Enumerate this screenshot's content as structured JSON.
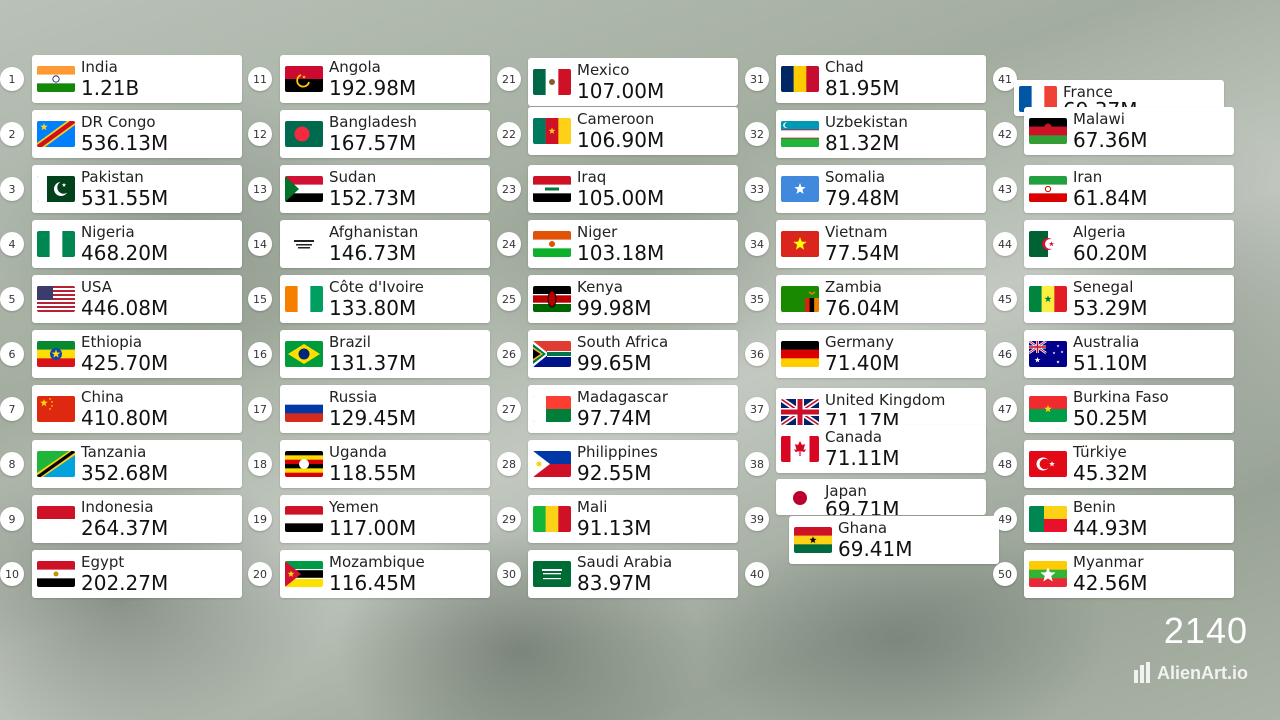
{
  "year": "2140",
  "brand": "AlienArt.io",
  "slots": [
    1,
    2,
    3,
    4,
    5,
    6,
    7,
    8,
    9,
    10,
    11,
    12,
    13,
    14,
    15,
    16,
    17,
    18,
    19,
    20,
    21,
    22,
    23,
    24,
    25,
    26,
    27,
    28,
    29,
    30,
    31,
    32,
    33,
    34,
    35,
    36,
    37,
    38,
    39,
    40,
    41,
    42,
    43,
    44,
    45,
    46,
    47,
    48,
    49,
    50
  ],
  "entries": [
    {
      "rank": 1,
      "name": "India",
      "value": "1.21B",
      "flag": "india"
    },
    {
      "rank": 2,
      "name": "DR Congo",
      "value": "536.13M",
      "flag": "drcongo"
    },
    {
      "rank": 3,
      "name": "Pakistan",
      "value": "531.55M",
      "flag": "pakistan"
    },
    {
      "rank": 4,
      "name": "Nigeria",
      "value": "468.20M",
      "flag": "nigeria"
    },
    {
      "rank": 5,
      "name": "USA",
      "value": "446.08M",
      "flag": "usa"
    },
    {
      "rank": 6,
      "name": "Ethiopia",
      "value": "425.70M",
      "flag": "ethiopia"
    },
    {
      "rank": 7,
      "name": "China",
      "value": "410.80M",
      "flag": "china"
    },
    {
      "rank": 8,
      "name": "Tanzania",
      "value": "352.68M",
      "flag": "tanzania"
    },
    {
      "rank": 9,
      "name": "Indonesia",
      "value": "264.37M",
      "flag": "indonesia"
    },
    {
      "rank": 10,
      "name": "Egypt",
      "value": "202.27M",
      "flag": "egypt"
    },
    {
      "rank": 11,
      "name": "Angola",
      "value": "192.98M",
      "flag": "angola"
    },
    {
      "rank": 12,
      "name": "Bangladesh",
      "value": "167.57M",
      "flag": "bangladesh"
    },
    {
      "rank": 13,
      "name": "Sudan",
      "value": "152.73M",
      "flag": "sudan"
    },
    {
      "rank": 14,
      "name": "Afghanistan",
      "value": "146.73M",
      "flag": "afghanistan"
    },
    {
      "rank": 15,
      "name": "Côte d'Ivoire",
      "value": "133.80M",
      "flag": "ivorycoast"
    },
    {
      "rank": 16,
      "name": "Brazil",
      "value": "131.37M",
      "flag": "brazil"
    },
    {
      "rank": 17,
      "name": "Russia",
      "value": "129.45M",
      "flag": "russia"
    },
    {
      "rank": 18,
      "name": "Uganda",
      "value": "118.55M",
      "flag": "uganda"
    },
    {
      "rank": 19,
      "name": "Yemen",
      "value": "117.00M",
      "flag": "yemen"
    },
    {
      "rank": 20,
      "name": "Mozambique",
      "value": "116.45M",
      "flag": "mozambique"
    },
    {
      "rank": 21,
      "name": "Mexico",
      "value": "107.00M",
      "flag": "mexico"
    },
    {
      "rank": 22,
      "name": "Cameroon",
      "value": "106.90M",
      "flag": "cameroon"
    },
    {
      "rank": 23,
      "name": "Iraq",
      "value": "105.00M",
      "flag": "iraq"
    },
    {
      "rank": 24,
      "name": "Niger",
      "value": "103.18M",
      "flag": "niger"
    },
    {
      "rank": 25,
      "name": "Kenya",
      "value": "99.98M",
      "flag": "kenya"
    },
    {
      "rank": 26,
      "name": "South Africa",
      "value": "99.65M",
      "flag": "southafrica"
    },
    {
      "rank": 27,
      "name": "Madagascar",
      "value": "97.74M",
      "flag": "madagascar"
    },
    {
      "rank": 28,
      "name": "Philippines",
      "value": "92.55M",
      "flag": "philippines"
    },
    {
      "rank": 29,
      "name": "Mali",
      "value": "91.13M",
      "flag": "mali"
    },
    {
      "rank": 30,
      "name": "Saudi Arabia",
      "value": "83.97M",
      "flag": "saudiarabia"
    },
    {
      "rank": 31,
      "name": "Chad",
      "value": "81.95M",
      "flag": "chad"
    },
    {
      "rank": 32,
      "name": "Uzbekistan",
      "value": "81.32M",
      "flag": "uzbekistan"
    },
    {
      "rank": 33,
      "name": "Somalia",
      "value": "79.48M",
      "flag": "somalia"
    },
    {
      "rank": 34,
      "name": "Vietnam",
      "value": "77.54M",
      "flag": "vietnam"
    },
    {
      "rank": 35,
      "name": "Zambia",
      "value": "76.04M",
      "flag": "zambia"
    },
    {
      "rank": 36,
      "name": "Germany",
      "value": "71.40M",
      "flag": "germany"
    },
    {
      "rank": 37,
      "name": "United Kingdom",
      "value": "71.17M",
      "flag": "uk"
    },
    {
      "rank": 38,
      "name": "Canada",
      "value": "71.11M",
      "flag": "canada"
    },
    {
      "rank": 39,
      "name": "Japan",
      "value": "69.71M",
      "flag": "japan"
    },
    {
      "rank": 40,
      "name": "Ghana",
      "value": "69.41M",
      "flag": "ghana"
    },
    {
      "rank": 41,
      "name": "France",
      "value": "69.37M",
      "flag": "france"
    },
    {
      "rank": 42,
      "name": "Malawi",
      "value": "67.36M",
      "flag": "malawi"
    },
    {
      "rank": 43,
      "name": "Iran",
      "value": "61.84M",
      "flag": "iran"
    },
    {
      "rank": 44,
      "name": "Algeria",
      "value": "60.20M",
      "flag": "algeria"
    },
    {
      "rank": 45,
      "name": "Senegal",
      "value": "53.29M",
      "flag": "senegal"
    },
    {
      "rank": 46,
      "name": "Australia",
      "value": "51.10M",
      "flag": "australia"
    },
    {
      "rank": 47,
      "name": "Burkina Faso",
      "value": "50.25M",
      "flag": "burkinafaso"
    },
    {
      "rank": 48,
      "name": "Türkiye",
      "value": "45.32M",
      "flag": "turkiye"
    },
    {
      "rank": 49,
      "name": "Benin",
      "value": "44.93M",
      "flag": "benin"
    },
    {
      "rank": 50,
      "name": "Myanmar",
      "value": "42.56M",
      "flag": "myanmar"
    }
  ]
}
